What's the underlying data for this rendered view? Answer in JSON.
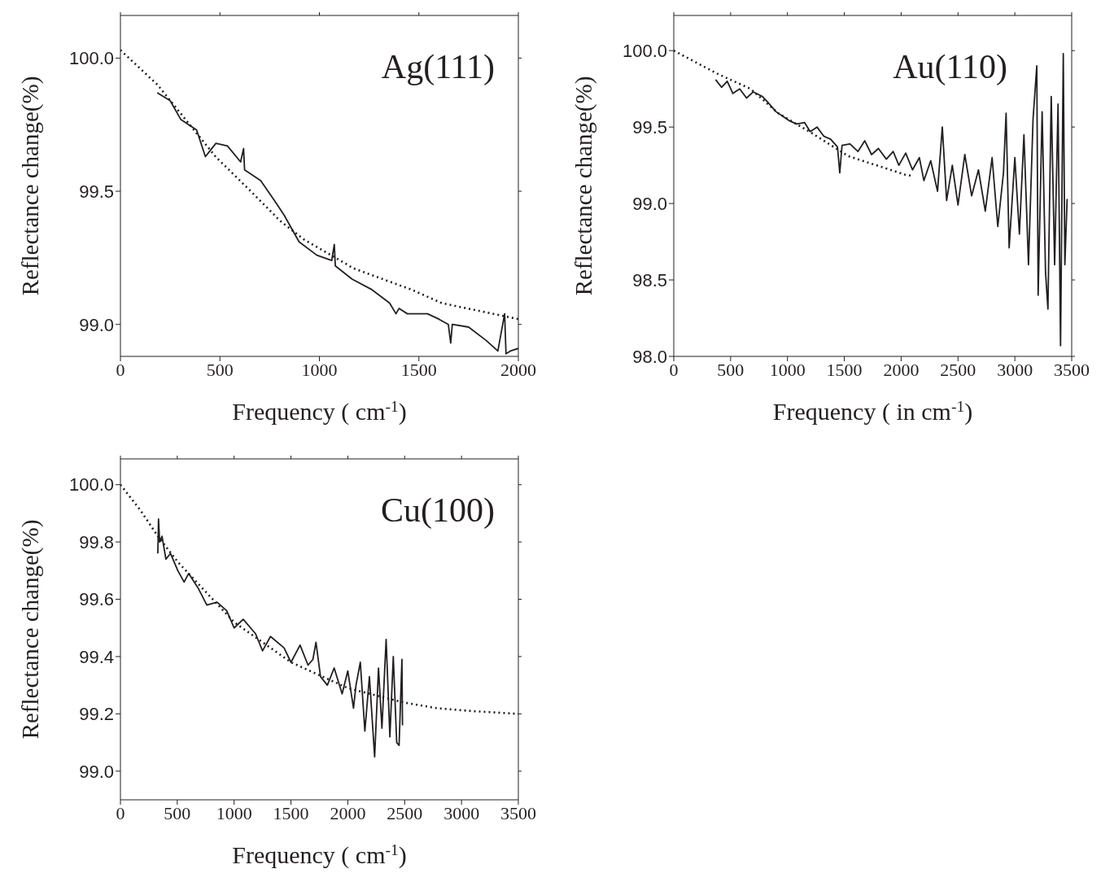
{
  "chart_data": [
    {
      "type": "line",
      "xlabel": "Frequency ( cm$^{-1}$)",
      "ylabel": "Reflectance change(%)",
      "annotations": [
        "Ag(111)"
      ],
      "xlim": [
        0,
        2000
      ],
      "xticks": [
        0,
        500,
        1000,
        1500,
        2000
      ],
      "ylim": [
        98.88,
        100.16
      ],
      "yticks": [
        {
          "value": 100,
          "label": "100.0"
        },
        99.5,
        {
          "value": 99,
          "label": "99.0"
        }
      ],
      "series": [
        {
          "color": "#231f20",
          "line_style": "solid",
          "x": [
            185,
            250,
            303,
            383,
            427,
            480,
            538,
            604,
            619,
            624,
            705,
            779,
            823,
            898,
            987,
            1062,
            1075,
            1080,
            1164,
            1265,
            1353,
            1385,
            1400,
            1442,
            1543,
            1600,
            1648,
            1660,
            1668,
            1750,
            1838,
            1897,
            1931,
            1938,
            1960,
            2000
          ],
          "values": [
            99.87,
            99.84,
            99.77,
            99.73,
            99.63,
            99.68,
            99.67,
            99.61,
            99.66,
            99.58,
            99.54,
            99.46,
            99.41,
            99.31,
            99.26,
            99.24,
            99.3,
            99.22,
            99.17,
            99.13,
            99.08,
            99.04,
            99.06,
            99.04,
            99.04,
            99.02,
            99.0,
            98.93,
            99.0,
            98.99,
            98.94,
            98.9,
            99.04,
            98.89,
            98.9,
            98.91
          ]
        },
        {
          "color": "#231f20",
          "line_style": "dotted",
          "x": [
            0,
            186,
            478,
            655,
            801,
            920,
            1173,
            1465,
            1615,
            2000
          ],
          "values": [
            100.03,
            99.9,
            99.63,
            99.5,
            99.39,
            99.32,
            99.21,
            99.13,
            99.08,
            99.02
          ]
        }
      ]
    },
    {
      "type": "line",
      "xlabel": "Frequency ( in cm$^{-1}$)",
      "ylabel": "Reflectance change(%)",
      "annotations": [
        "Au(110)"
      ],
      "xlim": [
        0,
        3500
      ],
      "xticks": [
        0,
        500,
        1000,
        1500,
        2000,
        2500,
        3000,
        3500
      ],
      "ylim": [
        98.0,
        100.23
      ],
      "yticks": [
        {
          "value": 100,
          "label": "100.0"
        },
        99.5,
        {
          "value": 99,
          "label": "99.0"
        },
        98.5,
        {
          "value": 98,
          "label": "98.0"
        }
      ],
      "series": [
        {
          "color": "#231f20",
          "line_style": "solid",
          "x": [
            368,
            420,
            470,
            520,
            580,
            640,
            700,
            780,
            830,
            900,
            960,
            1020,
            1080,
            1150,
            1200,
            1260,
            1320,
            1380,
            1440,
            1460,
            1480,
            1550,
            1620,
            1680,
            1740,
            1800,
            1870,
            1930,
            1980,
            2040,
            2100,
            2160,
            2200,
            2260,
            2320,
            2362,
            2400,
            2450,
            2500,
            2560,
            2620,
            2680,
            2740,
            2800,
            2850,
            2900,
            2923,
            2950,
            3000,
            3040,
            3080,
            3120,
            3160,
            3193,
            3205,
            3240,
            3270,
            3291,
            3320,
            3350,
            3380,
            3402,
            3426,
            3440,
            3460
          ],
          "values": [
            99.81,
            99.76,
            99.8,
            99.72,
            99.75,
            99.69,
            99.73,
            99.7,
            99.66,
            99.6,
            99.57,
            99.54,
            99.52,
            99.53,
            99.47,
            99.5,
            99.44,
            99.42,
            99.37,
            99.2,
            99.38,
            99.39,
            99.34,
            99.41,
            99.32,
            99.36,
            99.29,
            99.34,
            99.25,
            99.33,
            99.22,
            99.3,
            99.15,
            99.28,
            99.08,
            99.5,
            99.02,
            99.25,
            98.99,
            99.32,
            99.05,
            99.22,
            98.95,
            99.3,
            98.85,
            99.2,
            99.59,
            98.71,
            99.3,
            98.8,
            99.45,
            98.6,
            99.55,
            99.9,
            98.4,
            99.6,
            98.55,
            98.31,
            99.7,
            98.6,
            99.65,
            98.07,
            99.98,
            98.6,
            99.03
          ]
        },
        {
          "color": "#231f20",
          "line_style": "dotted",
          "x": [
            0,
            380,
            675,
            920,
            1215,
            1535,
            2030,
            2100
          ],
          "values": [
            100.0,
            99.85,
            99.75,
            99.59,
            99.46,
            99.31,
            99.19,
            99.18
          ]
        }
      ]
    },
    {
      "type": "line",
      "xlabel": "Frequency ( cm$^{-1}$)",
      "ylabel": "Reflectance change(%)",
      "annotations": [
        "Cu(100)"
      ],
      "xlim": [
        0,
        3500
      ],
      "xticks": [
        0,
        500,
        1000,
        1500,
        2000,
        2500,
        3000,
        3500
      ],
      "ylim": [
        98.9,
        100.09
      ],
      "yticks": [
        {
          "value": 100,
          "label": "100.0"
        },
        99.8,
        99.6,
        99.4,
        99.2,
        {
          "value": 99,
          "label": "99.0"
        }
      ],
      "series": [
        {
          "color": "#231f20",
          "line_style": "solid",
          "x": [
            329,
            335,
            345,
            366,
            400,
            440,
            505,
            560,
            600,
            682,
            760,
            850,
            935,
            1000,
            1080,
            1188,
            1250,
            1320,
            1440,
            1500,
            1580,
            1650,
            1693,
            1720,
            1760,
            1820,
            1880,
            1950,
            2000,
            2050,
            2072,
            2110,
            2150,
            2190,
            2236,
            2270,
            2300,
            2337,
            2370,
            2400,
            2430,
            2451,
            2476,
            2481
          ],
          "values": [
            99.76,
            99.88,
            99.8,
            99.82,
            99.74,
            99.76,
            99.7,
            99.66,
            99.69,
            99.64,
            99.58,
            99.59,
            99.56,
            99.5,
            99.53,
            99.48,
            99.42,
            99.47,
            99.43,
            99.38,
            99.44,
            99.37,
            99.39,
            99.45,
            99.33,
            99.3,
            99.36,
            99.27,
            99.35,
            99.22,
            99.3,
            99.38,
            99.14,
            99.33,
            99.05,
            99.36,
            99.15,
            99.46,
            99.12,
            99.4,
            99.1,
            99.09,
            99.39,
            99.16
          ]
        },
        {
          "color": "#231f20",
          "line_style": "dotted",
          "x": [
            0,
            177,
            329,
            505,
            1000,
            1500,
            2000,
            2489,
            2780,
            3083,
            3500
          ],
          "values": [
            100.0,
            99.91,
            99.82,
            99.73,
            99.52,
            99.38,
            99.29,
            99.24,
            99.22,
            99.21,
            99.2
          ]
        }
      ]
    }
  ]
}
